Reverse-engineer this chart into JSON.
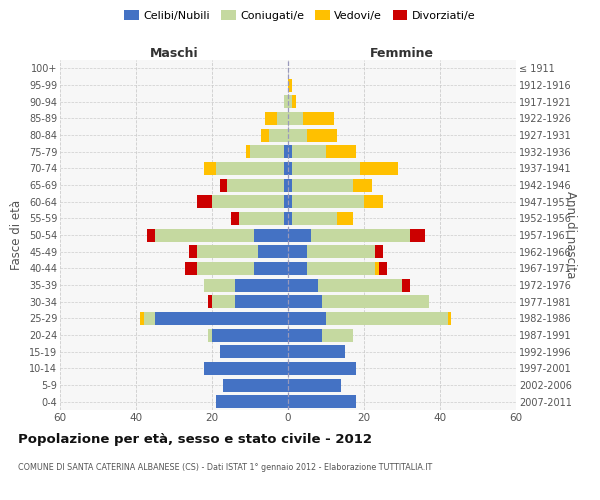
{
  "age_groups_bottom_to_top": [
    "0-4",
    "5-9",
    "10-14",
    "15-19",
    "20-24",
    "25-29",
    "30-34",
    "35-39",
    "40-44",
    "45-49",
    "50-54",
    "55-59",
    "60-64",
    "65-69",
    "70-74",
    "75-79",
    "80-84",
    "85-89",
    "90-94",
    "95-99",
    "100+"
  ],
  "birth_years_bottom_to_top": [
    "2007-2011",
    "2002-2006",
    "1997-2001",
    "1992-1996",
    "1987-1991",
    "1982-1986",
    "1977-1981",
    "1972-1976",
    "1967-1971",
    "1962-1966",
    "1957-1961",
    "1952-1956",
    "1947-1951",
    "1942-1946",
    "1937-1941",
    "1932-1936",
    "1927-1931",
    "1922-1926",
    "1917-1921",
    "1912-1916",
    "≤ 1911"
  ],
  "maschi": {
    "celibi": [
      19,
      17,
      22,
      18,
      20,
      35,
      14,
      14,
      9,
      8,
      9,
      1,
      1,
      1,
      1,
      1,
      0,
      0,
      0,
      0,
      0
    ],
    "coniugati": [
      0,
      0,
      0,
      0,
      1,
      3,
      6,
      8,
      15,
      16,
      26,
      12,
      19,
      15,
      18,
      9,
      5,
      3,
      1,
      0,
      0
    ],
    "vedovi": [
      0,
      0,
      0,
      0,
      0,
      1,
      0,
      0,
      0,
      0,
      0,
      0,
      0,
      0,
      3,
      1,
      2,
      3,
      0,
      0,
      0
    ],
    "divorziati": [
      0,
      0,
      0,
      0,
      0,
      0,
      1,
      0,
      3,
      2,
      2,
      2,
      4,
      2,
      0,
      0,
      0,
      0,
      0,
      0,
      0
    ]
  },
  "femmine": {
    "nubili": [
      18,
      14,
      18,
      15,
      9,
      10,
      9,
      8,
      5,
      5,
      6,
      1,
      1,
      1,
      1,
      1,
      0,
      0,
      0,
      0,
      0
    ],
    "coniugate": [
      0,
      0,
      0,
      0,
      8,
      32,
      28,
      22,
      18,
      18,
      26,
      12,
      19,
      16,
      18,
      9,
      5,
      4,
      1,
      0,
      0
    ],
    "vedove": [
      0,
      0,
      0,
      0,
      0,
      1,
      0,
      0,
      1,
      0,
      0,
      4,
      5,
      5,
      10,
      8,
      8,
      8,
      1,
      1,
      0
    ],
    "divorziate": [
      0,
      0,
      0,
      0,
      0,
      0,
      0,
      2,
      2,
      2,
      4,
      0,
      0,
      0,
      0,
      0,
      0,
      0,
      0,
      0,
      0
    ]
  },
  "colors": {
    "celibi": "#4472c4",
    "coniugati": "#c5d9a0",
    "vedovi": "#ffc000",
    "divorziati": "#cc0000"
  },
  "title": "Popolazione per età, sesso e stato civile - 2012",
  "subtitle": "COMUNE DI SANTA CATERINA ALBANESE (CS) - Dati ISTAT 1° gennaio 2012 - Elaborazione TUTTITALIA.IT",
  "ylabel_left": "Fasce di età",
  "ylabel_right": "Anni di nascita",
  "xlim": 60,
  "bg_color": "#f7f7f7",
  "grid_color": "#cccccc"
}
